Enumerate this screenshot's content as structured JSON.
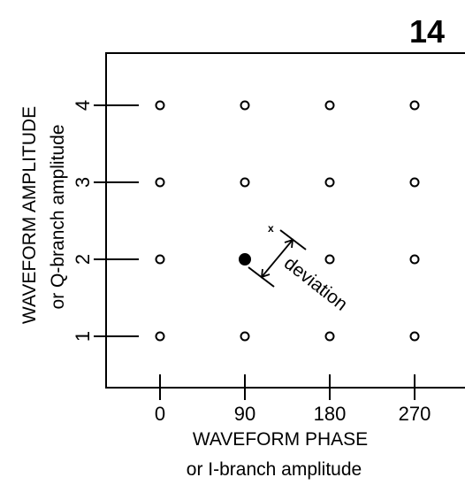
{
  "figure": {
    "number": "14",
    "colors": {
      "ink": "#000000",
      "background": "#ffffff"
    }
  },
  "chart_data": {
    "type": "scatter",
    "xlabel_line1": "WAVEFORM PHASE",
    "xlabel_line2": "or I-branch amplitude",
    "ylabel_line1": "WAVEFORM AMPLITUDE",
    "ylabel_line2": "or Q-branch amplitude",
    "x_ticks": [
      0,
      90,
      180,
      270
    ],
    "y_ticks": [
      1,
      2,
      3,
      4
    ],
    "constellation_points": [
      {
        "x": 0,
        "y": 1
      },
      {
        "x": 90,
        "y": 1
      },
      {
        "x": 180,
        "y": 1
      },
      {
        "x": 270,
        "y": 1
      },
      {
        "x": 0,
        "y": 2
      },
      {
        "x": 90,
        "y": 2
      },
      {
        "x": 180,
        "y": 2
      },
      {
        "x": 270,
        "y": 2
      },
      {
        "x": 0,
        "y": 3
      },
      {
        "x": 90,
        "y": 3
      },
      {
        "x": 180,
        "y": 3
      },
      {
        "x": 270,
        "y": 3
      },
      {
        "x": 0,
        "y": 4
      },
      {
        "x": 90,
        "y": 4
      },
      {
        "x": 180,
        "y": 4
      },
      {
        "x": 270,
        "y": 4
      }
    ],
    "highlighted_point": {
      "x": 90,
      "y": 2
    },
    "received_marker": {
      "label": "x"
    },
    "annotation": {
      "label": "deviation"
    },
    "grid": false
  }
}
